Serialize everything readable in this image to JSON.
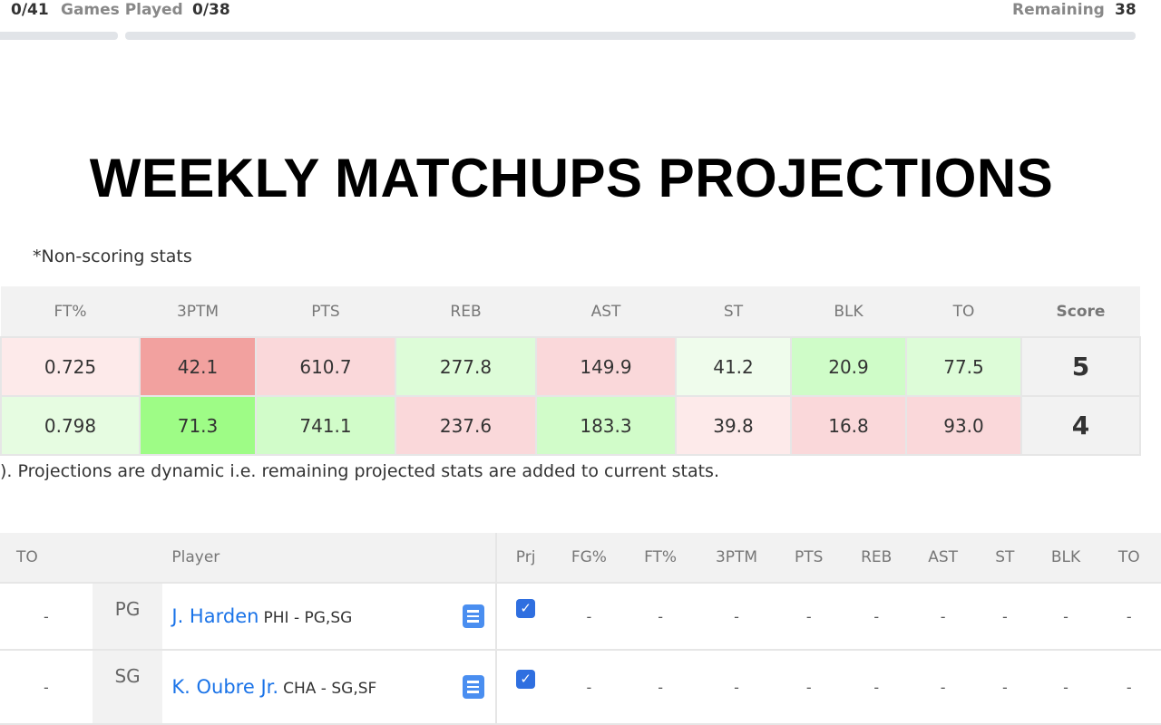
{
  "topbar": {
    "left_count": "0/41",
    "games_played_label": "Games Played",
    "games_played_value": "0/38",
    "remaining_label": "Remaining",
    "remaining_value": "38"
  },
  "title": "WEEKLY MATCHUPS PROJECTIONS",
  "note": "*Non-scoring stats",
  "matchup": {
    "headers": [
      "FT%",
      "3PTM",
      "PTS",
      "REB",
      "AST",
      "ST",
      "BLK",
      "TO",
      "Score"
    ],
    "rows": [
      {
        "values": [
          "0.725",
          "42.1",
          "610.7",
          "277.8",
          "149.9",
          "41.2",
          "20.9",
          "77.5"
        ],
        "score": "5",
        "colors": [
          "#fdeaea",
          "#f2a19f",
          "#fad8da",
          "#ddfcd8",
          "#fad8da",
          "#effcec",
          "#cffcc8",
          "#ddfcd8"
        ]
      },
      {
        "values": [
          "0.798",
          "71.3",
          "741.1",
          "237.6",
          "183.3",
          "39.8",
          "16.8",
          "93.0"
        ],
        "score": "4",
        "colors": [
          "#e6fce1",
          "#9efc86",
          "#d1fcc9",
          "#fad8da",
          "#d1fcc9",
          "#fdeaea",
          "#fad8da",
          "#fad8da"
        ]
      }
    ]
  },
  "footnote": "). Projections are dynamic i.e. remaining projected stats are added to current stats.",
  "players": {
    "headers": [
      "TO",
      "",
      "Player",
      "Prj",
      "FG%",
      "FT%",
      "3PTM",
      "PTS",
      "REB",
      "AST",
      "ST",
      "BLK",
      "TO"
    ],
    "rows": [
      {
        "to": "-",
        "pos": "PG",
        "name": "J. Harden",
        "team": "PHI - PG,SG",
        "prj": "✓",
        "stats": [
          "-",
          "-",
          "-",
          "-",
          "-",
          "-",
          "-",
          "-",
          "-"
        ]
      },
      {
        "to": "-",
        "pos": "SG",
        "name": "K. Oubre Jr.",
        "team": "CHA - SG,SF",
        "prj": "✓",
        "stats": [
          "-",
          "-",
          "-",
          "-",
          "-",
          "-",
          "-",
          "-",
          "-"
        ]
      }
    ]
  }
}
